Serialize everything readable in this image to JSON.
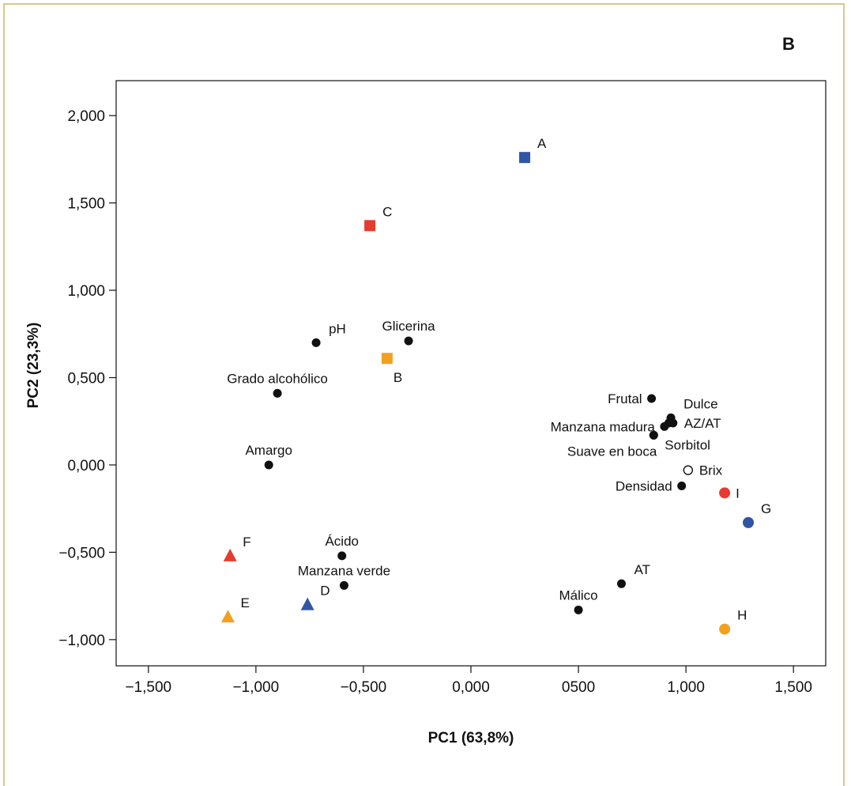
{
  "chart_data": {
    "type": "scatter",
    "panel_label": "B",
    "xlabel": "PC1 (63,8%)",
    "ylabel": "PC2 (23,3%)",
    "xlim": [
      -1.65,
      1.65
    ],
    "ylim": [
      -1.15,
      2.2
    ],
    "x_ticks": [
      -1.5,
      -1.0,
      -0.5,
      0.0,
      0.5,
      1.0,
      1.5
    ],
    "x_tick_labels": [
      "−1,500",
      "−1,000",
      "−0,500",
      "0,000",
      "0500",
      "1,000",
      "1,500"
    ],
    "y_ticks": [
      2.0,
      1.5,
      1.0,
      0.5,
      0.0,
      -0.5,
      -1.0
    ],
    "y_tick_labels": [
      "2,000",
      "1,500",
      "1,000",
      "0,500",
      "0,000",
      "−0,500",
      "−1,000"
    ],
    "grid": false,
    "colors": {
      "blue": "#2f55a4",
      "red": "#e63b2e",
      "orange": "#f2a11f",
      "black": "#111111",
      "frame": "#d8c98f"
    },
    "points": [
      {
        "label": "A",
        "x": 0.25,
        "y": 1.76,
        "marker": "square",
        "color": "blue",
        "label_pos": "above-right"
      },
      {
        "label": "C",
        "x": -0.47,
        "y": 1.37,
        "marker": "square",
        "color": "red",
        "label_pos": "above-right"
      },
      {
        "label": "B",
        "x": -0.39,
        "y": 0.61,
        "marker": "square",
        "color": "orange",
        "label_pos": "below-right"
      },
      {
        "label": "pH",
        "x": -0.72,
        "y": 0.7,
        "marker": "circle",
        "color": "black",
        "label_pos": "above-right"
      },
      {
        "label": "Glicerina",
        "x": -0.29,
        "y": 0.71,
        "marker": "circle",
        "color": "black",
        "label_pos": "above"
      },
      {
        "label": "Grado alcohólico",
        "x": -0.9,
        "y": 0.41,
        "marker": "circle",
        "color": "black",
        "label_pos": "above"
      },
      {
        "label": "Amargo",
        "x": -0.94,
        "y": 0.0,
        "marker": "circle",
        "color": "black",
        "label_pos": "above"
      },
      {
        "label": "Frutal",
        "x": 0.84,
        "y": 0.38,
        "marker": "circle",
        "color": "black",
        "label_pos": "left"
      },
      {
        "label": "Dulce",
        "x": 0.93,
        "y": 0.27,
        "marker": "circle",
        "color": "black",
        "label_pos": "above-right"
      },
      {
        "label": "",
        "x": 0.92,
        "y": 0.24,
        "marker": "circle",
        "color": "black",
        "label_pos": "none"
      },
      {
        "label": "AZ/AT",
        "x": 0.94,
        "y": 0.24,
        "marker": "circle",
        "color": "black",
        "label_pos": "right"
      },
      {
        "label": "Manzana madura",
        "x": 0.9,
        "y": 0.22,
        "marker": "circle",
        "color": "black",
        "label_pos": "left"
      },
      {
        "label": "Sorbitol",
        "x": 0.85,
        "y": 0.17,
        "marker": "circle",
        "color": "black",
        "label_pos": "right-low"
      },
      {
        "label": "Suave en boca",
        "x": 0.85,
        "y": 0.17,
        "marker": "circle",
        "color": "black",
        "label_pos": "below-left"
      },
      {
        "label": "Brix",
        "x": 1.01,
        "y": -0.03,
        "marker": "circle-open",
        "color": "black",
        "label_pos": "right"
      },
      {
        "label": "Densidad",
        "x": 0.98,
        "y": -0.12,
        "marker": "circle",
        "color": "black",
        "label_pos": "left"
      },
      {
        "label": "I",
        "x": 1.18,
        "y": -0.16,
        "marker": "circle",
        "color": "red",
        "label_pos": "right"
      },
      {
        "label": "G",
        "x": 1.29,
        "y": -0.33,
        "marker": "circle",
        "color": "blue",
        "label_pos": "above-right"
      },
      {
        "label": "Ácido",
        "x": -0.6,
        "y": -0.52,
        "marker": "circle",
        "color": "black",
        "label_pos": "above"
      },
      {
        "label": "Manzana verde",
        "x": -0.59,
        "y": -0.69,
        "marker": "circle",
        "color": "black",
        "label_pos": "above"
      },
      {
        "label": "F",
        "x": -1.12,
        "y": -0.52,
        "marker": "triangle",
        "color": "red",
        "label_pos": "above-right"
      },
      {
        "label": "D",
        "x": -0.76,
        "y": -0.8,
        "marker": "triangle",
        "color": "blue",
        "label_pos": "above-right"
      },
      {
        "label": "E",
        "x": -1.13,
        "y": -0.87,
        "marker": "triangle",
        "color": "orange",
        "label_pos": "above-right"
      },
      {
        "label": "AT",
        "x": 0.7,
        "y": -0.68,
        "marker": "circle",
        "color": "black",
        "label_pos": "above-right"
      },
      {
        "label": "Málico",
        "x": 0.5,
        "y": -0.83,
        "marker": "circle",
        "color": "black",
        "label_pos": "above"
      },
      {
        "label": "H",
        "x": 1.18,
        "y": -0.94,
        "marker": "circle",
        "color": "orange",
        "label_pos": "above-right"
      }
    ]
  }
}
